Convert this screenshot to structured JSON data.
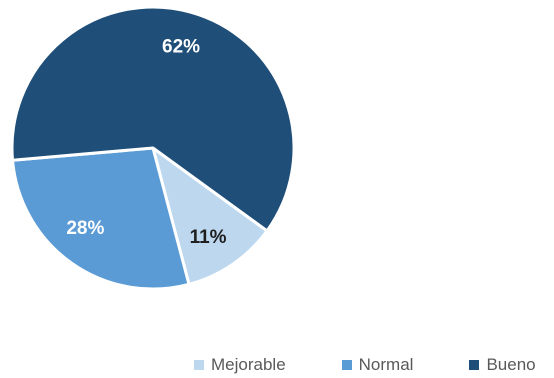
{
  "chart_data": {
    "type": "pie",
    "title": "",
    "slices": [
      {
        "name": "Mejorable",
        "value": 11,
        "label": "11%",
        "color": "#bdd7ee",
        "label_color": "#1f1f1f"
      },
      {
        "name": "Normal",
        "value": 28,
        "label": "28%",
        "color": "#5b9bd5",
        "label_color": "#ffffff"
      },
      {
        "name": "Bueno",
        "value": 62,
        "label": "62%",
        "color": "#1f4e79",
        "label_color": "#ffffff"
      }
    ],
    "legend_position": "bottom"
  }
}
